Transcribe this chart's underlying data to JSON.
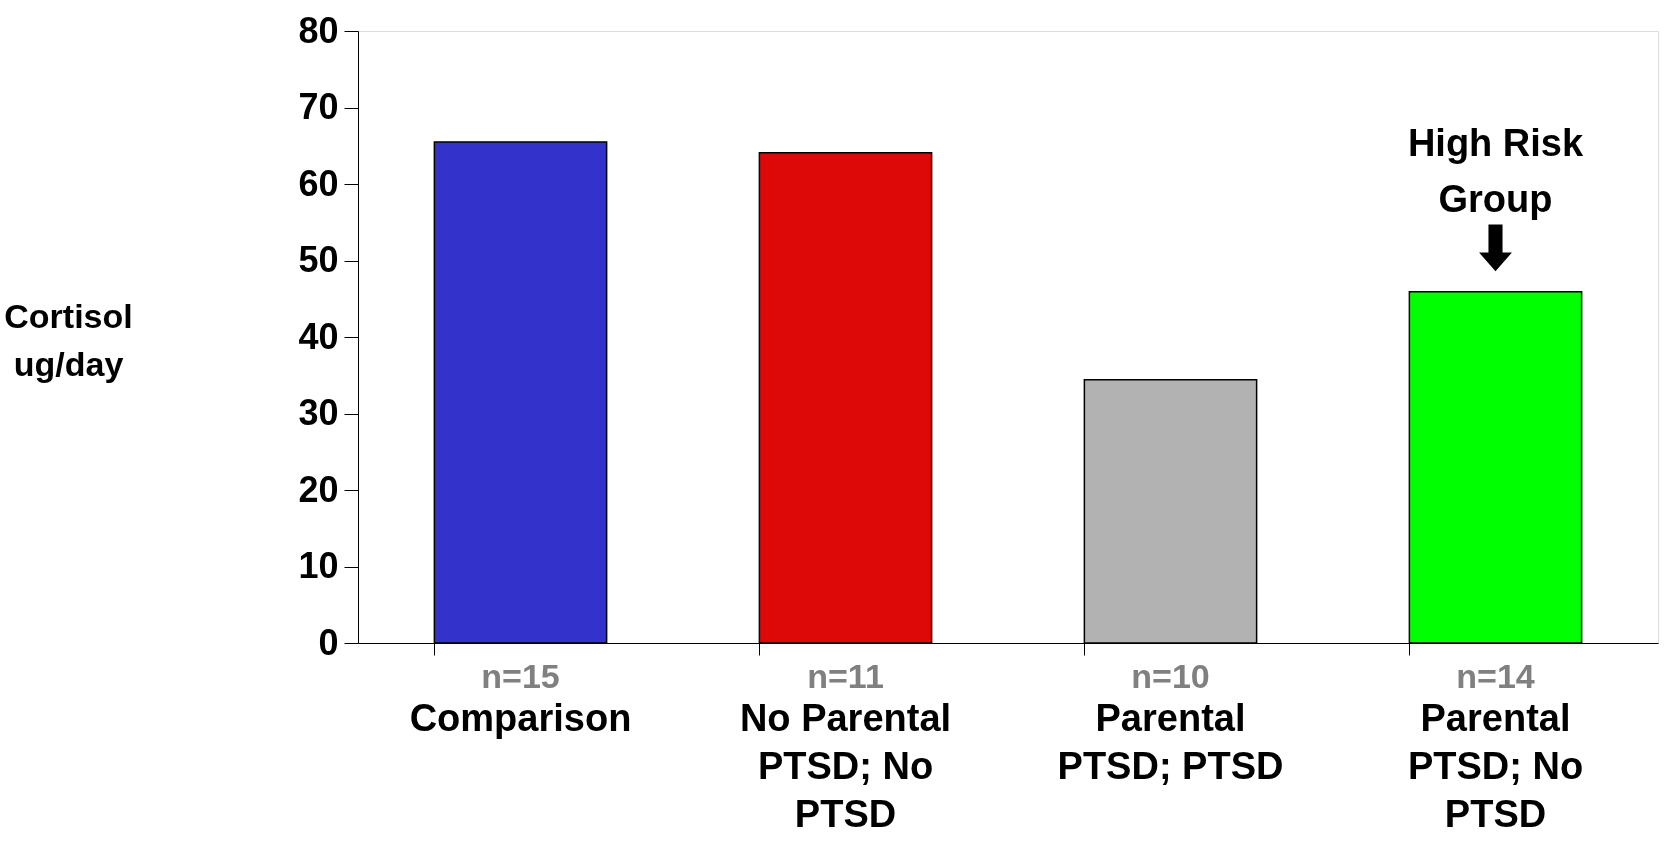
{
  "chart_data": {
    "type": "bar",
    "ylabel": "Cortisol ug/day",
    "categories": [
      "Comparison",
      "No Parental PTSD; No PTSD",
      "Parental PTSD; PTSD",
      "Parental PTSD; No PTSD"
    ],
    "values": [
      65.5,
      64.1,
      34.4,
      45.9
    ],
    "colors": [
      "#3333cc",
      "#dd0808",
      "#b2b2b2",
      "#00ff00"
    ],
    "ylim": [
      0,
      80
    ],
    "yticks": [
      0,
      10,
      20,
      30,
      40,
      50,
      60,
      70,
      80
    ],
    "annotations": [
      {
        "text": "High Risk Group",
        "x": "Parental PTSD; No PTSD",
        "y": 45.9
      },
      "n=15",
      "n=11",
      "n=10",
      "n=14"
    ]
  }
}
